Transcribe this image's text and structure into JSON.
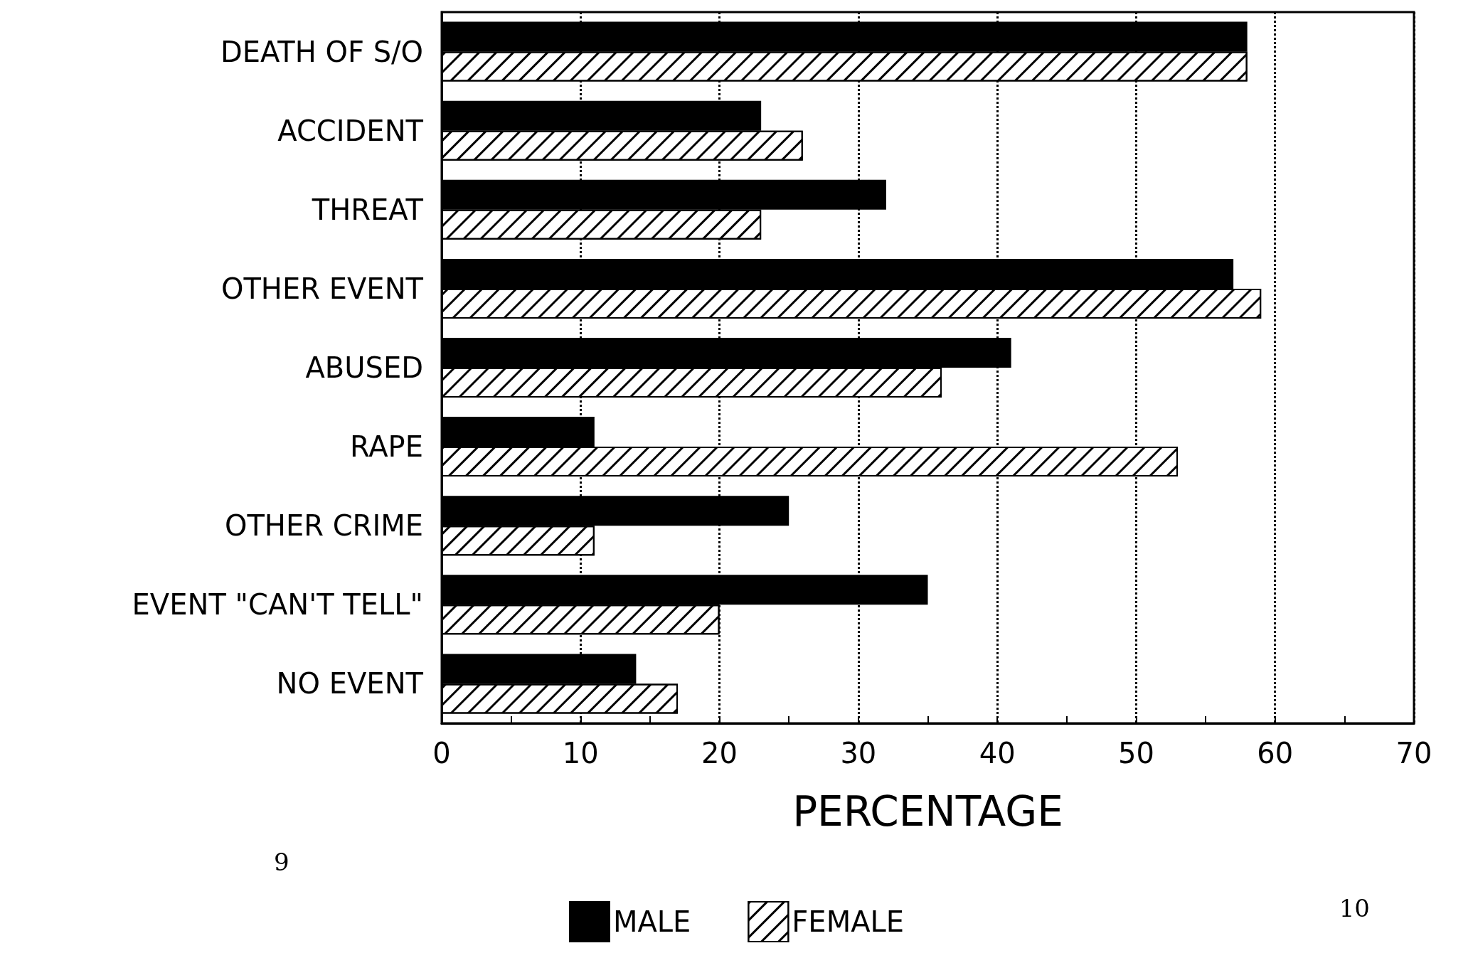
{
  "chart_data": {
    "type": "bar",
    "orientation": "horizontal",
    "xlabel": "PERCENTAGE",
    "categories": [
      "DEATH OF S/O",
      "ACCIDENT",
      "THREAT",
      "OTHER EVENT",
      "ABUSED",
      "RAPE",
      "OTHER CRIME",
      "EVENT \"CAN'T TELL\"",
      "NO EVENT"
    ],
    "series": [
      {
        "name": "MALE",
        "color": "#000000",
        "values": [
          58,
          23,
          32,
          57,
          41,
          11,
          25,
          35,
          14
        ]
      },
      {
        "name": "FEMALE",
        "color": "#ffffff",
        "values": [
          58,
          26,
          23,
          59,
          36,
          53,
          11,
          20,
          17
        ]
      }
    ],
    "xlim": [
      0,
      70
    ],
    "xticks": [
      0,
      {
        "value": 5,
        "label": null
      },
      10,
      {
        "value": 15,
        "label": null
      },
      20,
      {
        "value": 25,
        "label": null
      },
      30,
      {
        "value": 35,
        "label": null
      },
      40,
      {
        "value": 45,
        "label": null
      },
      50,
      {
        "value": 55,
        "label": null
      },
      60,
      {
        "value": 65,
        "label": null
      },
      70
    ],
    "grid": "x",
    "legend": "bottom",
    "annotations": [
      "9",
      "10"
    ]
  }
}
